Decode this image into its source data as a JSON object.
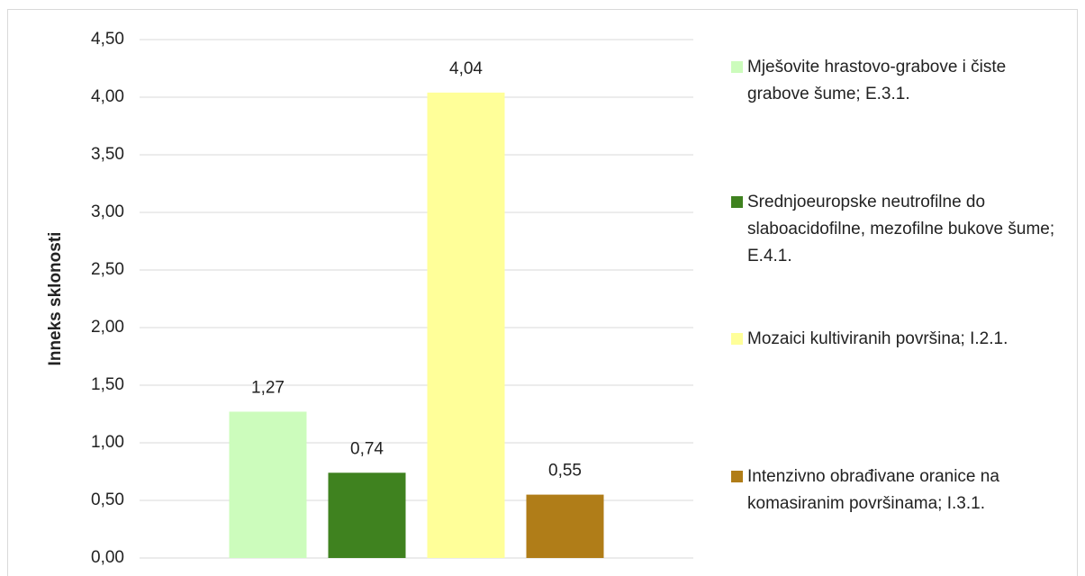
{
  "chart_data": {
    "type": "bar",
    "ylabel": "Inneks sklonosti",
    "categories": [
      null
    ],
    "series": [
      {
        "name": "Mješovite hrastovo-grabove i čiste grabove šume; E.3.1.",
        "color": "#ccfcbc",
        "values": [
          1.27
        ],
        "value_labels": [
          "1,27"
        ]
      },
      {
        "name": "Srednjoeuropske neutrofilne do slaboacidofilne, mezofilne bukove šume; E.4.1.",
        "color": "#3f821f",
        "values": [
          0.74
        ],
        "value_labels": [
          "0,74"
        ]
      },
      {
        "name": "Mozaici kultiviranih površina; I.2.1.",
        "color": "#ffff99",
        "values": [
          4.04
        ],
        "value_labels": [
          "4,04"
        ]
      },
      {
        "name": "Intenzivno obrađivane oranice na komasiranim površinama; I.3.1.",
        "color": "#b07d18",
        "values": [
          0.55
        ],
        "value_labels": [
          "0,55"
        ]
      }
    ],
    "ylim": [
      0,
      4.5
    ],
    "yticks": [
      {
        "value": 0,
        "label": "0,00"
      },
      {
        "value": 0.5,
        "label": "0,50"
      },
      {
        "value": 1,
        "label": "1,00"
      },
      {
        "value": 1.5,
        "label": "1,50"
      },
      {
        "value": 2,
        "label": "2,00"
      },
      {
        "value": 2.5,
        "label": "2,50"
      },
      {
        "value": 3,
        "label": "3,00"
      },
      {
        "value": 3.5,
        "label": "3,50"
      },
      {
        "value": 4,
        "label": "4,00"
      },
      {
        "value": 4.5,
        "label": "4,50"
      }
    ],
    "grid": true,
    "legend": "right"
  }
}
